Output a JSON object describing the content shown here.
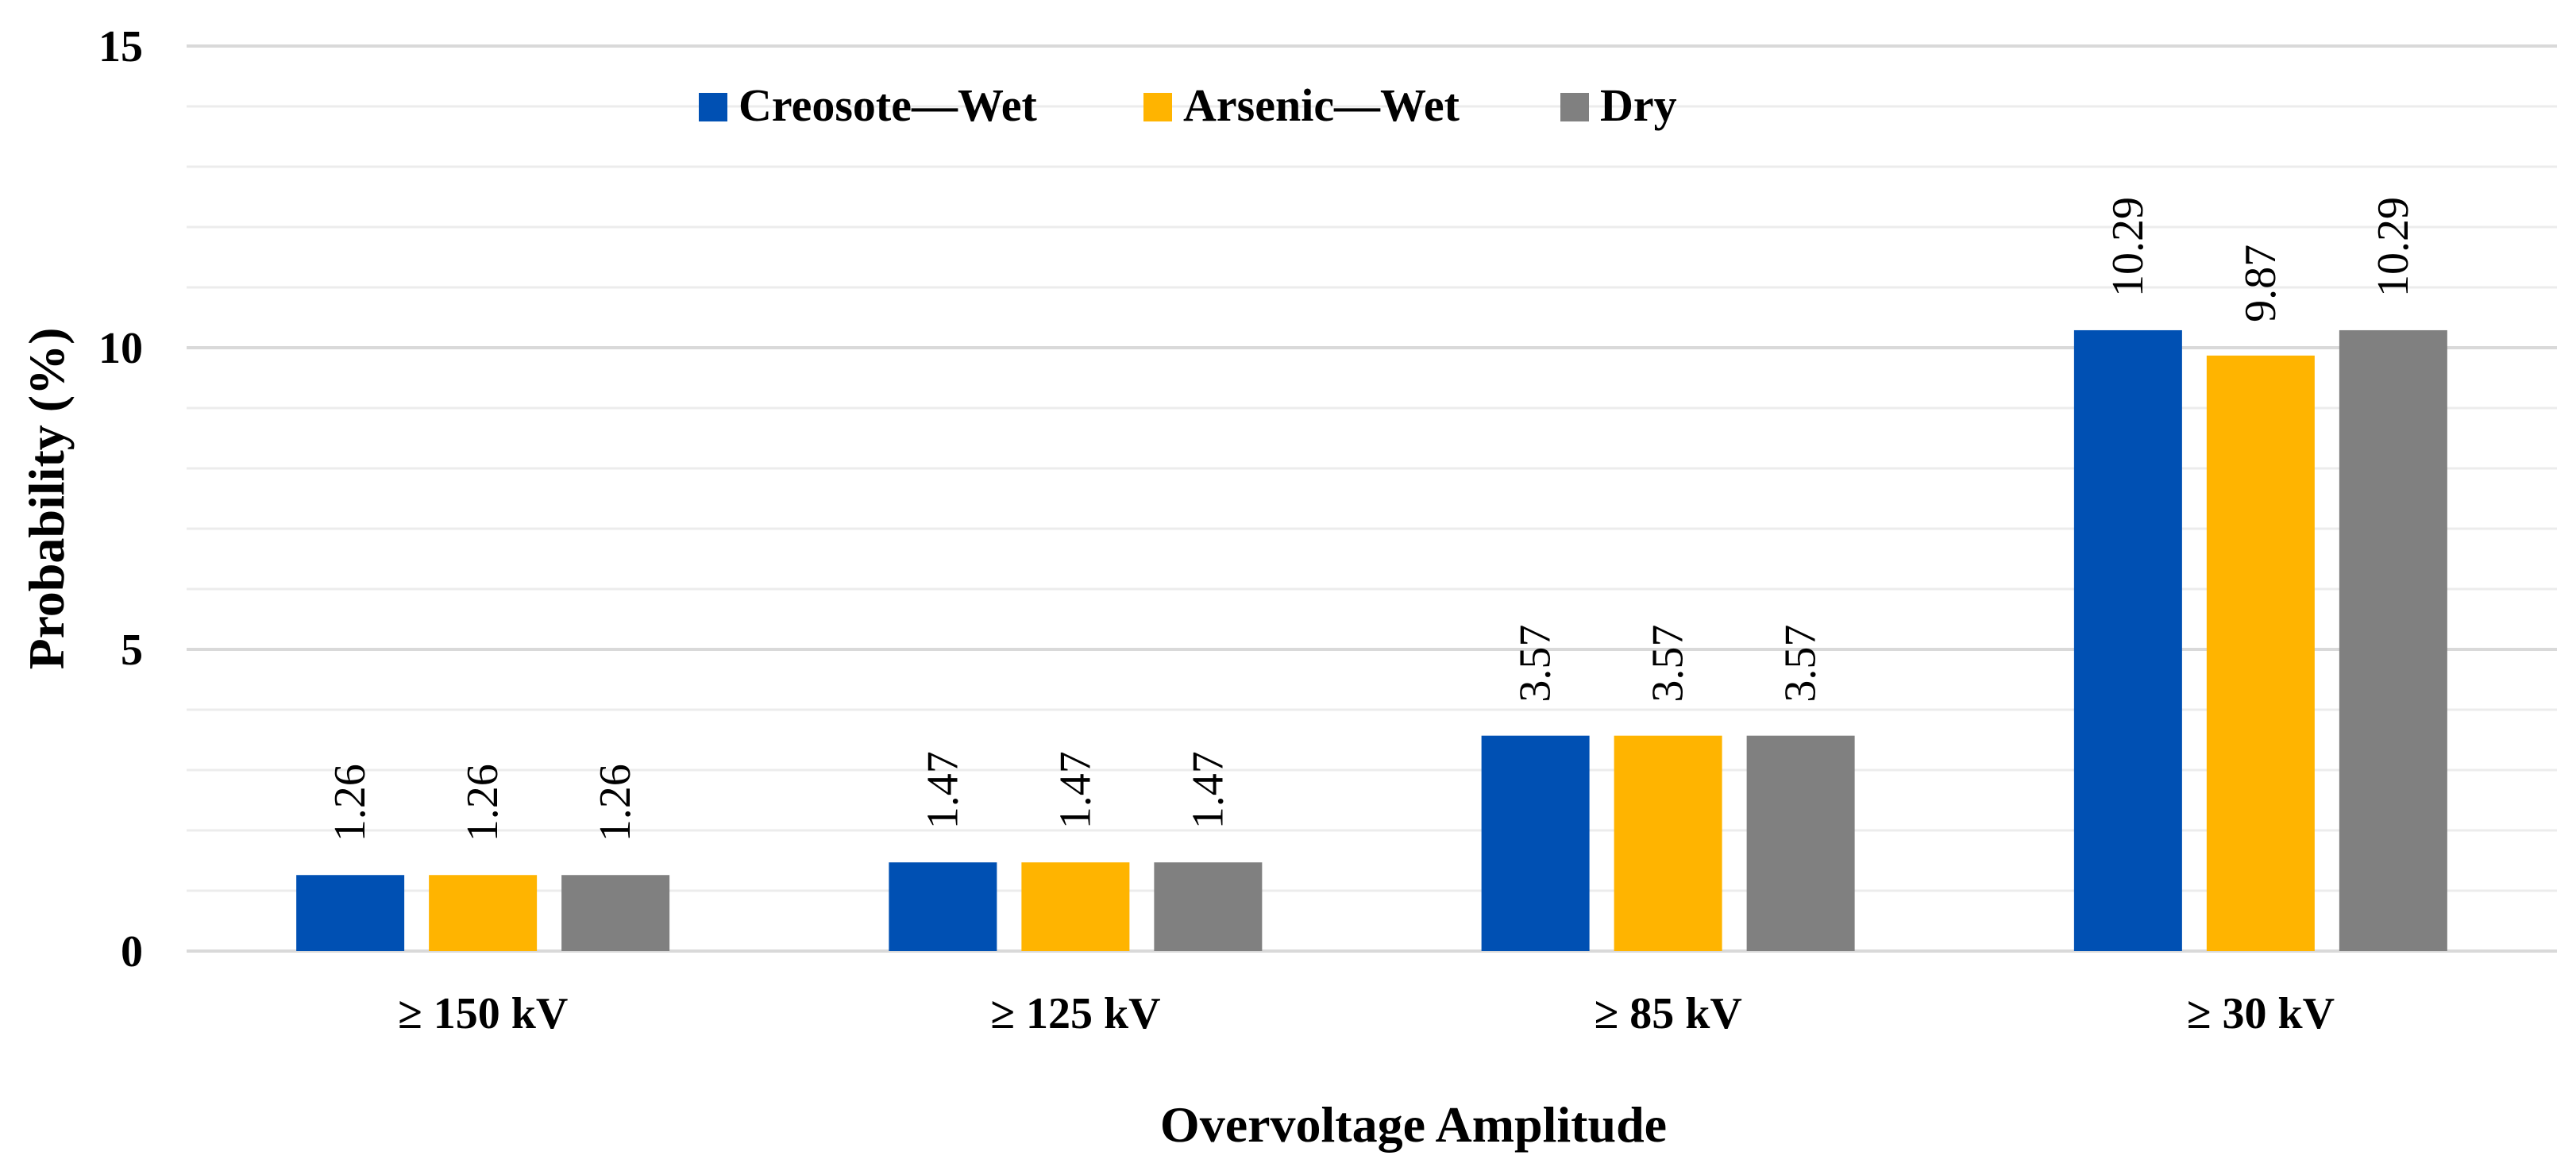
{
  "chart_data": {
    "type": "bar",
    "title": "",
    "xlabel": "Overvoltage Amplitude",
    "ylabel": "Probability (%)",
    "ylim": [
      0,
      15
    ],
    "yticks": [
      0,
      5,
      10,
      15
    ],
    "minor_step": 1,
    "grid": true,
    "legend_position": "top",
    "categories": [
      "≥ 150 kV",
      "≥ 125 kV",
      "≥ 85 kV",
      "≥ 30 kV"
    ],
    "series": [
      {
        "name": "Creosote—Wet",
        "color": "#0050b3",
        "values": [
          1.26,
          1.47,
          3.57,
          10.29
        ]
      },
      {
        "name": "Arsenic—Wet",
        "color": "#ffb400",
        "values": [
          1.26,
          1.47,
          3.57,
          9.87
        ]
      },
      {
        "name": "Dry",
        "color": "#808080",
        "values": [
          1.26,
          1.47,
          3.57,
          10.29
        ]
      }
    ]
  }
}
